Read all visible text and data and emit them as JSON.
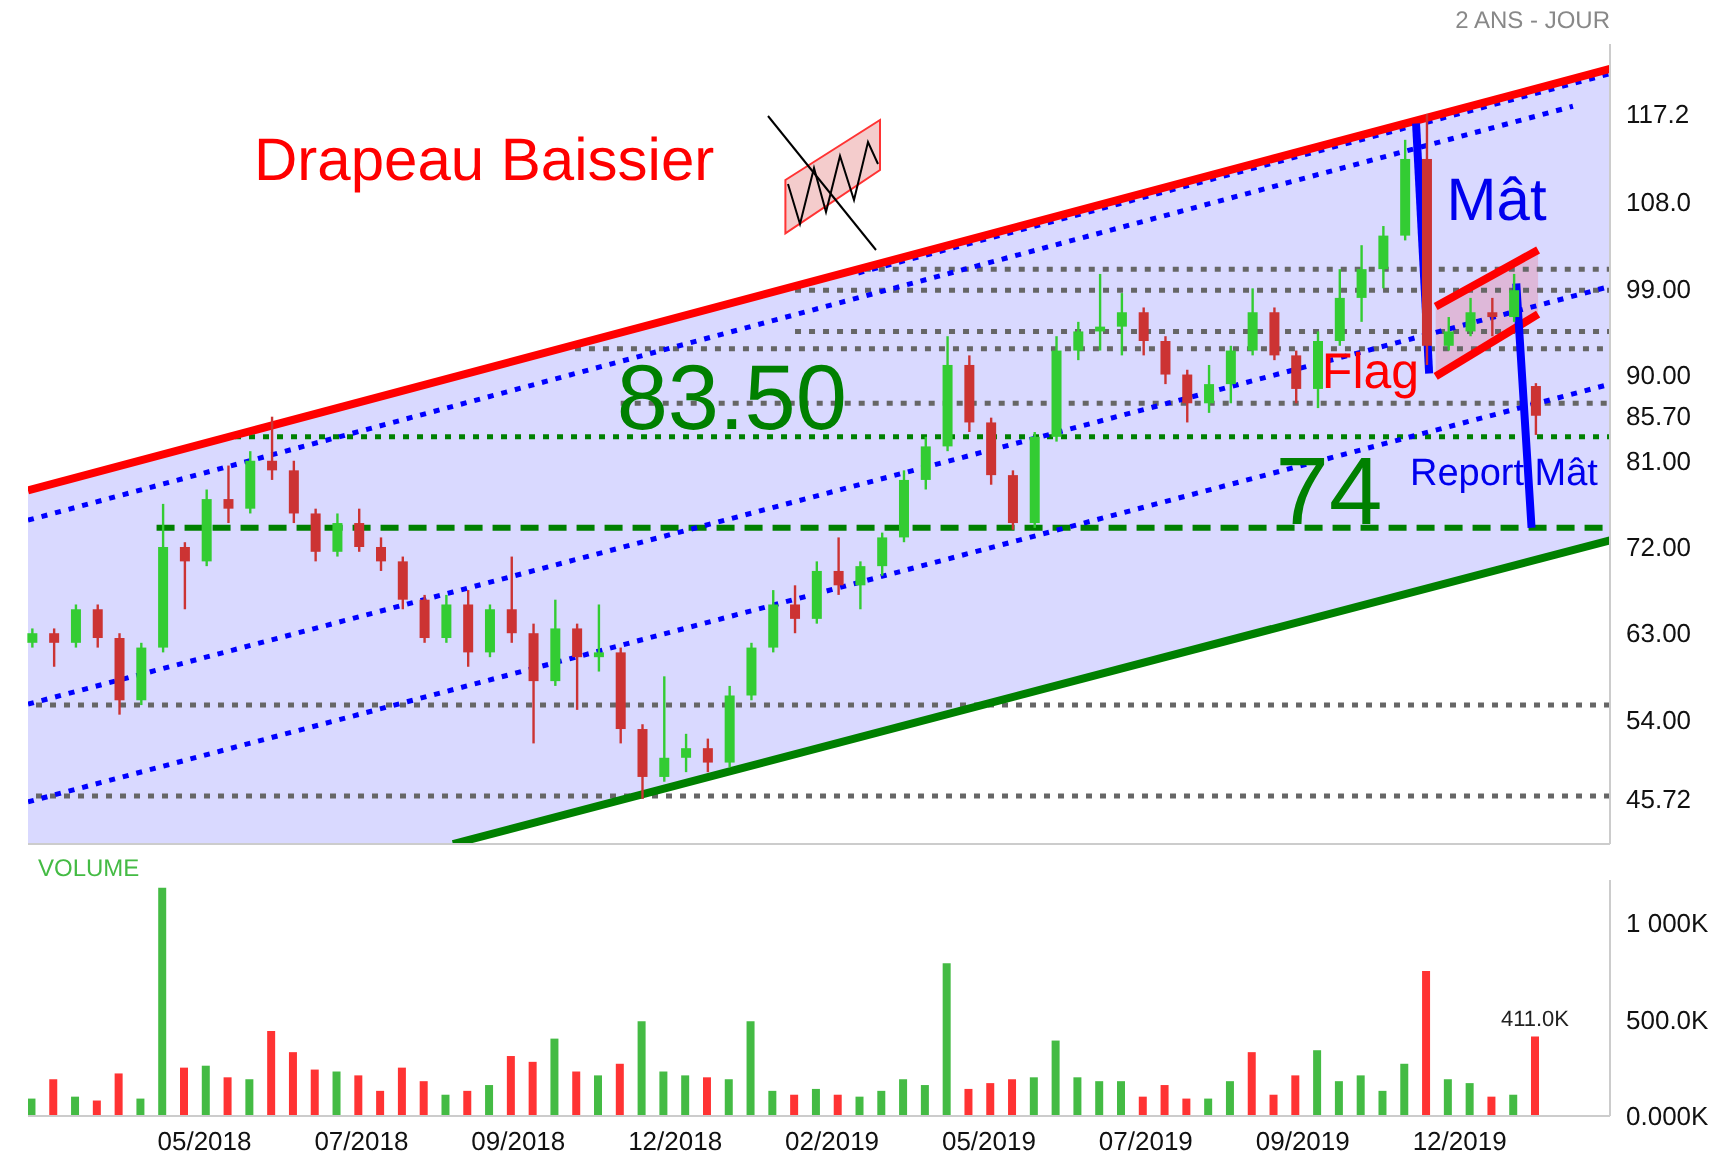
{
  "chart_data": [
    {
      "type": "candlestick",
      "title": "Drapeau Baissier",
      "subtitle": "2 ANS - JOUR",
      "x": [
        "2018-02-19",
        "2018-03-01",
        "2018-03-11",
        "2018-03-21",
        "2018-03-31",
        "2018-04-10",
        "2018-04-20",
        "2018-04-30",
        "2018-05-10",
        "2018-05-20",
        "2018-05-30",
        "2018-06-09",
        "2018-06-19",
        "2018-06-29",
        "2018-07-09",
        "2018-07-19",
        "2018-07-29",
        "2018-08-08",
        "2018-08-18",
        "2018-08-28",
        "2018-09-07",
        "2018-09-17",
        "2018-09-27",
        "2018-10-07",
        "2018-10-17",
        "2018-10-27",
        "2018-11-06",
        "2018-11-16",
        "2018-11-26",
        "2018-12-06",
        "2018-12-16",
        "2018-12-26",
        "2019-01-05",
        "2019-01-15",
        "2019-01-25",
        "2019-02-04",
        "2019-02-14",
        "2019-02-24",
        "2019-03-06",
        "2019-03-16",
        "2019-03-26",
        "2019-04-05",
        "2019-04-15",
        "2019-04-25",
        "2019-05-05",
        "2019-05-15",
        "2019-05-25",
        "2019-06-04",
        "2019-06-14",
        "2019-06-24",
        "2019-07-04",
        "2019-07-14",
        "2019-07-24",
        "2019-08-03",
        "2019-08-13",
        "2019-08-23",
        "2019-09-02",
        "2019-09-12",
        "2019-09-22",
        "2019-10-02",
        "2019-10-12",
        "2019-10-22",
        "2019-11-01",
        "2019-11-11",
        "2019-11-21",
        "2019-12-01",
        "2019-12-11",
        "2019-12-21",
        "2019-12-31",
        "2020-01-10"
      ],
      "ohlc": [
        [
          62,
          63.5,
          61.5,
          63
        ],
        [
          63,
          63.5,
          59.5,
          62
        ],
        [
          62,
          66,
          61.5,
          65.5
        ],
        [
          65.5,
          66,
          61.5,
          62.5
        ],
        [
          62.5,
          63,
          54.5,
          56
        ],
        [
          56,
          62,
          55.5,
          61.5
        ],
        [
          61.5,
          76.5,
          61,
          72
        ],
        [
          72,
          72.5,
          65.5,
          70.5
        ],
        [
          70.5,
          78,
          70,
          77
        ],
        [
          77,
          80.5,
          74.5,
          76
        ],
        [
          76,
          82,
          75.5,
          81
        ],
        [
          81,
          85.6,
          79,
          80
        ],
        [
          80,
          81,
          74.5,
          75.5
        ],
        [
          75.5,
          76,
          70.5,
          71.5
        ],
        [
          71.5,
          75.5,
          71,
          74.5
        ],
        [
          74.5,
          76,
          71.5,
          72
        ],
        [
          72,
          73,
          69.5,
          70.5
        ],
        [
          70.5,
          71,
          65.5,
          66.5
        ],
        [
          66.5,
          67,
          62,
          62.5
        ],
        [
          62.5,
          67,
          62,
          66
        ],
        [
          66,
          67.5,
          59.5,
          61
        ],
        [
          61,
          66,
          60.5,
          65.5
        ],
        [
          65.5,
          71,
          62,
          63
        ],
        [
          63,
          64,
          51.5,
          58
        ],
        [
          58,
          66.5,
          57.5,
          63.5
        ],
        [
          63.5,
          64,
          55,
          60.5
        ],
        [
          60.5,
          66,
          59,
          61
        ],
        [
          61,
          61.5,
          51.5,
          53
        ],
        [
          53,
          53.5,
          45.72,
          48
        ],
        [
          48,
          58.5,
          47.5,
          50
        ],
        [
          50,
          52.5,
          48.5,
          51
        ],
        [
          51,
          52,
          48.5,
          49.5
        ],
        [
          49.5,
          57.5,
          49,
          56.5
        ],
        [
          56.5,
          62,
          56,
          61.5
        ],
        [
          61.5,
          67.5,
          61,
          66
        ],
        [
          66,
          68,
          63,
          64.5
        ],
        [
          64.5,
          70.5,
          64,
          69.5
        ],
        [
          69.5,
          73,
          67,
          68
        ],
        [
          68,
          70.5,
          65.5,
          70
        ],
        [
          70,
          73.5,
          69,
          73
        ],
        [
          73,
          80,
          72.5,
          79
        ],
        [
          79,
          83.5,
          78,
          82.5
        ],
        [
          82.5,
          94,
          82,
          91
        ],
        [
          91,
          92,
          84,
          85
        ],
        [
          85,
          85.5,
          78.5,
          79.5
        ],
        [
          79.5,
          80,
          73.8,
          74.5
        ],
        [
          74.5,
          84,
          74,
          83.5
        ],
        [
          83.5,
          94,
          83,
          92.5
        ],
        [
          92.5,
          95.5,
          91.5,
          94.5
        ],
        [
          94.5,
          100.5,
          92.5,
          95
        ],
        [
          95,
          98.5,
          92,
          96.5
        ],
        [
          96.5,
          97,
          92,
          93.5
        ],
        [
          93.5,
          94,
          89,
          90
        ],
        [
          90,
          90.5,
          85,
          87
        ],
        [
          87,
          91,
          86,
          89
        ],
        [
          89,
          93,
          87,
          92.5
        ],
        [
          92.5,
          99,
          92,
          96.5
        ],
        [
          96.5,
          97,
          91.5,
          92
        ],
        [
          92,
          92.5,
          87,
          88.5
        ],
        [
          88.5,
          94.5,
          86.5,
          93.5
        ],
        [
          93.5,
          101,
          93,
          98
        ],
        [
          98,
          103.5,
          95.5,
          101
        ],
        [
          101,
          105.5,
          99,
          104.5
        ],
        [
          104.5,
          114.5,
          104,
          112.5
        ],
        [
          112.5,
          117.2,
          91,
          93
        ],
        [
          93,
          96,
          92.5,
          94.5
        ],
        [
          94.5,
          98,
          94,
          96.5
        ],
        [
          96.5,
          98,
          94,
          96
        ],
        [
          96,
          100.5,
          95.5,
          98.8
        ],
        [
          88.8,
          89.1,
          83.7,
          85.7
        ]
      ],
      "colors": [
        "#33cc33",
        "#cc3333",
        "#33cc33",
        "#cc3333",
        "#cc3333",
        "#33cc33",
        "#33cc33",
        "#cc3333",
        "#33cc33",
        "#cc3333",
        "#33cc33",
        "#cc3333",
        "#cc3333",
        "#cc3333",
        "#33cc33",
        "#cc3333",
        "#cc3333",
        "#cc3333",
        "#cc3333",
        "#33cc33",
        "#cc3333",
        "#33cc33",
        "#cc3333",
        "#cc3333",
        "#33cc33",
        "#cc3333",
        "#33cc33",
        "#cc3333",
        "#cc3333",
        "#33cc33",
        "#33cc33",
        "#cc3333",
        "#33cc33",
        "#33cc33",
        "#33cc33",
        "#cc3333",
        "#33cc33",
        "#cc3333",
        "#33cc33",
        "#33cc33",
        "#33cc33",
        "#33cc33",
        "#33cc33",
        "#cc3333",
        "#cc3333",
        "#cc3333",
        "#33cc33",
        "#33cc33",
        "#33cc33",
        "#33cc33",
        "#33cc33",
        "#cc3333",
        "#cc3333",
        "#cc3333",
        "#33cc33",
        "#33cc33",
        "#33cc33",
        "#cc3333",
        "#cc3333",
        "#33cc33",
        "#33cc33",
        "#33cc33",
        "#33cc33",
        "#33cc33",
        "#cc3333",
        "#33cc33",
        "#33cc33",
        "#cc3333",
        "#33cc33",
        "#cc3333"
      ],
      "xlim": [
        "2018-02-17",
        "2020-02-13"
      ],
      "ylim": [
        41,
        124.5
      ],
      "yticks": [
        {
          "value": 45.72,
          "label": "45.72"
        },
        {
          "value": 54,
          "label": "54.00"
        },
        {
          "value": 63,
          "label": "63.00"
        },
        {
          "value": 72,
          "label": "72.00"
        },
        {
          "value": 81,
          "label": "81.00"
        },
        {
          "value": 85.7,
          "label": "85.70"
        },
        {
          "value": 90,
          "label": "90.00"
        },
        {
          "value": 99,
          "label": "99.00"
        },
        {
          "value": 108,
          "label": "108.0"
        },
        {
          "value": 117.2,
          "label": "117.2"
        }
      ],
      "tick_labels": "y",
      "series": [
        {
          "type": "line",
          "color": "#666666",
          "line_style": "dotted",
          "x": [
            "2019-03-08",
            "2020-02-13"
          ],
          "values": [
            101,
            101
          ]
        },
        {
          "type": "line",
          "color": "#666666",
          "line_style": "dotted",
          "x": [
            "2019-02-04",
            "2020-02-13"
          ],
          "values": [
            98.8,
            98.8
          ]
        },
        {
          "type": "line",
          "color": "#666666",
          "line_style": "dotted",
          "x": [
            "2019-02-04",
            "2020-02-13"
          ],
          "values": [
            94.5,
            94.5
          ]
        },
        {
          "type": "line",
          "color": "#666666",
          "line_style": "dotted",
          "x": [
            "2018-10-26",
            "2020-02-13"
          ],
          "values": [
            92.7,
            92.7
          ]
        },
        {
          "type": "line",
          "color": "#666666",
          "line_style": "dotted",
          "x": [
            "2018-11-16",
            "2020-02-13"
          ],
          "values": [
            87,
            87
          ]
        },
        {
          "type": "line",
          "color": "#008000",
          "line_style": "dotted",
          "x": [
            "2018-05-23",
            "2020-02-13"
          ],
          "values": [
            83.5,
            83.5
          ]
        },
        {
          "type": "line",
          "color": "#008000",
          "line_style": "dashed",
          "x": [
            "2018-04-17",
            "2020-02-13"
          ],
          "values": [
            74,
            74
          ]
        },
        {
          "type": "line",
          "color": "#0000ff",
          "line_style": "dotted",
          "x": [
            "2019-03-05",
            "2020-02-13"
          ],
          "values": [
            100.6,
            121.4
          ]
        },
        {
          "type": "line",
          "color": "#0000ff",
          "line_style": "dotted",
          "x": [
            "2018-02-17",
            "2020-01-27"
          ],
          "values": [
            74.8,
            118
          ]
        },
        {
          "type": "line",
          "color": "#0000ff",
          "line_style": "dotted",
          "x": [
            "2018-02-17",
            "2018-08-31",
            "2020-02-13"
          ],
          "values": [
            55.6,
            67.3,
            99.2
          ],
          "lower": [
            41,
            41,
            72.7
          ],
          "upper": [
            77.9,
            89.7,
            121.9
          ]
        },
        {
          "type": "line",
          "color": "#0000ff",
          "line_style": "dotted",
          "x": [
            "2018-02-17",
            "2020-02-13"
          ],
          "values": [
            45.4,
            89
          ]
        },
        {
          "type": "line",
          "color": "#ff0000",
          "line_style": "solid",
          "x": [
            "2018-02-17",
            "2020-02-13"
          ],
          "values": [
            77.9,
            121.9
          ]
        },
        {
          "type": "line",
          "color": "#008000",
          "line_style": "solid",
          "x": [
            "2018-08-31",
            "2020-02-13"
          ],
          "values": [
            41,
            72.7
          ]
        },
        {
          "type": "line",
          "color": "#ff0000",
          "line_style": "solid",
          "x": [
            "2019-11-25",
            "2020-01-11"
          ],
          "values": [
            97.1,
            103
          ],
          "lower": [
            89.8,
            96.3
          ],
          "upper": [
            97.1,
            103
          ]
        },
        {
          "type": "line",
          "color": "#ff0000",
          "line_style": "solid",
          "x": [
            "2019-11-25",
            "2020-01-11"
          ],
          "values": [
            89.8,
            96.3
          ]
        },
        {
          "type": "line",
          "color": "#0000ff",
          "line_style": "solid",
          "x": [
            "2019-11-16",
            "2019-11-22"
          ],
          "values": [
            116.2,
            90.1
          ]
        },
        {
          "type": "line",
          "color": "#0000ff",
          "line_style": "solid",
          "x": [
            "2020-01-01",
            "2020-01-08"
          ],
          "values": [
            99.5,
            74
          ]
        }
      ],
      "ref_lines": [
        {
          "axis": "y",
          "value": 55.5,
          "color": "#666666",
          "line_style": "dotted"
        },
        {
          "axis": "y",
          "value": 46,
          "color": "#666666",
          "line_style": "dotted"
        }
      ],
      "annotations": [
        {
          "text": "Mât",
          "x": "2019-11-19",
          "y": 104
        },
        {
          "text": "Flag",
          "x": "2019-11-22",
          "y": 89.6
        },
        {
          "text": "83.50",
          "x": "2019-01-06",
          "y": 83.5
        },
        {
          "text": "74",
          "x": "2019-10-07",
          "y": 74
        },
        {
          "text": "Report Mât",
          "x": "2020-01-07",
          "y": 78.5
        }
      ]
    },
    {
      "type": "bar",
      "title": "VOLUME",
      "x": [
        "2018-02-19",
        "2018-03-01",
        "2018-03-11",
        "2018-03-21",
        "2018-03-31",
        "2018-04-10",
        "2018-04-20",
        "2018-04-30",
        "2018-05-10",
        "2018-05-20",
        "2018-05-30",
        "2018-06-09",
        "2018-06-19",
        "2018-06-29",
        "2018-07-09",
        "2018-07-19",
        "2018-07-29",
        "2018-08-08",
        "2018-08-18",
        "2018-08-28",
        "2018-09-07",
        "2018-09-17",
        "2018-09-27",
        "2018-10-07",
        "2018-10-17",
        "2018-10-27",
        "2018-11-06",
        "2018-11-16",
        "2018-11-26",
        "2018-12-06",
        "2018-12-16",
        "2018-12-26",
        "2019-01-05",
        "2019-01-15",
        "2019-01-25",
        "2019-02-04",
        "2019-02-14",
        "2019-02-24",
        "2019-03-06",
        "2019-03-16",
        "2019-03-26",
        "2019-04-05",
        "2019-04-15",
        "2019-04-25",
        "2019-05-05",
        "2019-05-15",
        "2019-05-25",
        "2019-06-04",
        "2019-06-14",
        "2019-06-24",
        "2019-07-04",
        "2019-07-14",
        "2019-07-24",
        "2019-08-03",
        "2019-08-13",
        "2019-08-23",
        "2019-09-02",
        "2019-09-12",
        "2019-09-22",
        "2019-10-02",
        "2019-10-12",
        "2019-10-22",
        "2019-11-01",
        "2019-11-11",
        "2019-11-21",
        "2019-12-01",
        "2019-12-11",
        "2019-12-21",
        "2019-12-31",
        "2020-01-10"
      ],
      "values": [
        90,
        190,
        100,
        80,
        220,
        90,
        1180,
        250,
        260,
        200,
        190,
        440,
        330,
        240,
        230,
        210,
        130,
        250,
        180,
        110,
        130,
        160,
        310,
        280,
        400,
        230,
        210,
        270,
        490,
        230,
        210,
        200,
        190,
        490,
        130,
        110,
        140,
        110,
        100,
        130,
        190,
        160,
        790,
        140,
        170,
        190,
        200,
        390,
        200,
        180,
        180,
        100,
        160,
        90,
        90,
        180,
        330,
        110,
        210,
        340,
        180,
        210,
        130,
        270,
        750,
        190,
        170,
        100,
        110,
        411
      ],
      "colors": [
        "#44bb44",
        "#ff3333",
        "#44bb44",
        "#ff3333",
        "#ff3333",
        "#44bb44",
        "#44bb44",
        "#ff3333",
        "#44bb44",
        "#ff3333",
        "#44bb44",
        "#ff3333",
        "#ff3333",
        "#ff3333",
        "#44bb44",
        "#ff3333",
        "#ff3333",
        "#ff3333",
        "#ff3333",
        "#44bb44",
        "#ff3333",
        "#44bb44",
        "#ff3333",
        "#ff3333",
        "#44bb44",
        "#ff3333",
        "#44bb44",
        "#ff3333",
        "#44bb44",
        "#44bb44",
        "#44bb44",
        "#ff3333",
        "#44bb44",
        "#44bb44",
        "#44bb44",
        "#ff3333",
        "#44bb44",
        "#ff3333",
        "#44bb44",
        "#44bb44",
        "#44bb44",
        "#44bb44",
        "#44bb44",
        "#ff3333",
        "#ff3333",
        "#ff3333",
        "#44bb44",
        "#44bb44",
        "#44bb44",
        "#44bb44",
        "#44bb44",
        "#ff3333",
        "#ff3333",
        "#ff3333",
        "#44bb44",
        "#44bb44",
        "#ff3333",
        "#ff3333",
        "#ff3333",
        "#44bb44",
        "#44bb44",
        "#44bb44",
        "#44bb44",
        "#44bb44",
        "#ff3333",
        "#44bb44",
        "#44bb44",
        "#ff3333",
        "#44bb44",
        "#ff3333"
      ],
      "value_labels": [
        null,
        null,
        null,
        null,
        null,
        null,
        null,
        null,
        null,
        null,
        null,
        null,
        null,
        null,
        null,
        null,
        null,
        null,
        null,
        null,
        null,
        null,
        null,
        null,
        null,
        null,
        null,
        null,
        null,
        null,
        null,
        null,
        null,
        null,
        null,
        null,
        null,
        null,
        null,
        null,
        null,
        null,
        null,
        null,
        null,
        null,
        null,
        null,
        null,
        null,
        null,
        null,
        null,
        null,
        null,
        null,
        null,
        null,
        null,
        null,
        null,
        null,
        null,
        null,
        null,
        null,
        null,
        null,
        null,
        "411.0K"
      ],
      "xlim": [
        "2018-02-17",
        "2020-02-13"
      ],
      "ylim": [
        0,
        1220
      ],
      "xticks": [
        {
          "value": "2018-05-09",
          "label": "05/2018"
        },
        {
          "value": "2018-07-20",
          "label": "07/2018"
        },
        {
          "value": "2018-09-30",
          "label": "09/2018"
        },
        {
          "value": "2018-12-11",
          "label": "12/2018"
        },
        {
          "value": "2019-02-21",
          "label": "02/2019"
        },
        {
          "value": "2019-05-04",
          "label": "05/2019"
        },
        {
          "value": "2019-07-15",
          "label": "07/2019"
        },
        {
          "value": "2019-09-25",
          "label": "09/2019"
        },
        {
          "value": "2019-12-06",
          "label": "12/2019"
        }
      ],
      "yticks": [
        {
          "value": 0,
          "label": "0.000K"
        },
        {
          "value": 500,
          "label": "500.0K"
        },
        {
          "value": 1000,
          "label": "1 000K"
        }
      ]
    }
  ]
}
